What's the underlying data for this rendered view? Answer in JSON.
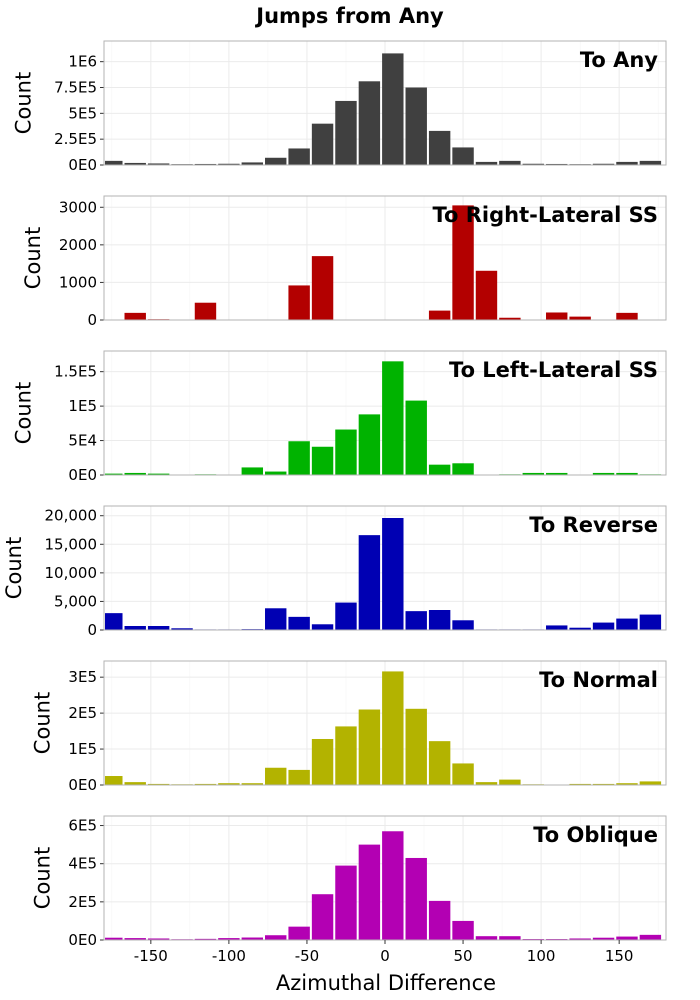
{
  "figure": {
    "title": "Jumps from Any",
    "xlabel": "Azimuthal Difference",
    "ylabel": "Count",
    "xticks": [
      "-150",
      "-100",
      "-50",
      "0",
      "50",
      "100",
      "150"
    ]
  },
  "chart_data": [
    {
      "type": "bar",
      "panel": "To Any",
      "color": "#404040",
      "x": [
        -175,
        -160,
        -145,
        -130,
        -115,
        -100,
        -85,
        -70,
        -55,
        -40,
        -25,
        -10,
        5,
        20,
        35,
        50,
        65,
        80,
        95,
        110,
        125,
        140,
        155,
        170,
        180
      ],
      "values": [
        40000,
        20000,
        15000,
        8000,
        10000,
        12000,
        25000,
        70000,
        160000,
        400000,
        620000,
        810000,
        1080000,
        750000,
        330000,
        170000,
        30000,
        40000,
        12000,
        10000,
        8000,
        12000,
        30000,
        40000,
        0
      ],
      "ylim": [
        0,
        1200000
      ],
      "yticks": [
        0,
        250000,
        500000,
        750000,
        1000000
      ],
      "ytick_labels": [
        "0E0",
        "2.5E5",
        "5E5",
        "7.5E5",
        "1E6"
      ]
    },
    {
      "type": "bar",
      "panel": "To Right-Lateral SS",
      "color": "#b30000",
      "x": [
        -175,
        -160,
        -145,
        -130,
        -115,
        -100,
        -85,
        -70,
        -55,
        -40,
        -25,
        -10,
        5,
        20,
        35,
        50,
        65,
        80,
        95,
        110,
        125,
        140,
        155,
        170,
        180
      ],
      "values": [
        0,
        190,
        20,
        0,
        460,
        0,
        0,
        0,
        920,
        1700,
        0,
        0,
        0,
        0,
        250,
        3050,
        1310,
        60,
        0,
        200,
        90,
        0,
        190,
        0,
        0
      ],
      "ylim": [
        0,
        3300
      ],
      "yticks": [
        0,
        1000,
        2000,
        3000
      ],
      "ytick_labels": [
        "0",
        "1000",
        "2000",
        "3000"
      ]
    },
    {
      "type": "bar",
      "panel": "To Left-Lateral SS",
      "color": "#00b300",
      "x": [
        -175,
        -160,
        -145,
        -130,
        -115,
        -100,
        -85,
        -70,
        -55,
        -40,
        -25,
        -10,
        5,
        20,
        35,
        50,
        65,
        80,
        95,
        110,
        125,
        140,
        155,
        170,
        180
      ],
      "values": [
        2000,
        3000,
        2000,
        0,
        1000,
        0,
        11000,
        5000,
        49000,
        41000,
        66000,
        88000,
        165000,
        108000,
        15000,
        17000,
        0,
        1000,
        3000,
        3000,
        0,
        3000,
        3000,
        1000,
        0
      ],
      "ylim": [
        0,
        180000
      ],
      "yticks": [
        0,
        50000,
        100000,
        150000
      ],
      "ytick_labels": [
        "0E0",
        "5E4",
        "1E5",
        "1.5E5"
      ]
    },
    {
      "type": "bar",
      "panel": "To Reverse",
      "color": "#0000b3",
      "x": [
        -175,
        -160,
        -145,
        -130,
        -115,
        -100,
        -85,
        -70,
        -55,
        -40,
        -25,
        -10,
        5,
        20,
        35,
        50,
        65,
        80,
        95,
        110,
        125,
        140,
        155,
        170,
        180
      ],
      "values": [
        2950,
        700,
        700,
        300,
        100,
        100,
        150,
        3800,
        2300,
        1000,
        4800,
        16600,
        19600,
        3300,
        3500,
        1700,
        100,
        100,
        100,
        800,
        400,
        1300,
        2000,
        2700,
        0
      ],
      "ylim": [
        0,
        21700
      ],
      "yticks": [
        0,
        5000,
        10000,
        15000,
        20000
      ],
      "ytick_labels": [
        "0",
        "5,000",
        "10,000",
        "15,000",
        "20,000"
      ]
    },
    {
      "type": "bar",
      "panel": "To Normal",
      "color": "#b3b300",
      "x": [
        -175,
        -160,
        -145,
        -130,
        -115,
        -100,
        -85,
        -70,
        -55,
        -40,
        -25,
        -10,
        5,
        20,
        35,
        50,
        65,
        80,
        95,
        110,
        125,
        140,
        155,
        170,
        180
      ],
      "values": [
        25000,
        8000,
        3000,
        2000,
        3000,
        5000,
        5000,
        48000,
        42000,
        128000,
        163000,
        210000,
        316000,
        212000,
        122000,
        60000,
        8000,
        15000,
        2000,
        1000,
        3000,
        3000,
        5000,
        10000,
        0
      ],
      "ylim": [
        0,
        345000
      ],
      "yticks": [
        0,
        100000,
        200000,
        300000
      ],
      "ytick_labels": [
        "0E0",
        "1E5",
        "2E5",
        "3E5"
      ]
    },
    {
      "type": "bar",
      "panel": "To Oblique",
      "color": "#b300b3",
      "x": [
        -175,
        -160,
        -145,
        -130,
        -115,
        -100,
        -85,
        -70,
        -55,
        -40,
        -25,
        -10,
        5,
        20,
        35,
        50,
        65,
        80,
        95,
        110,
        125,
        140,
        155,
        170,
        180
      ],
      "values": [
        12000,
        10000,
        8000,
        4000,
        6000,
        10000,
        13000,
        25000,
        70000,
        240000,
        390000,
        500000,
        570000,
        430000,
        205000,
        100000,
        20000,
        20000,
        5000,
        5000,
        8000,
        12000,
        18000,
        27000,
        0
      ],
      "ylim": [
        0,
        650000
      ],
      "yticks": [
        0,
        200000,
        400000,
        600000
      ],
      "ytick_labels": [
        "0E0",
        "2E5",
        "4E5",
        "6E5"
      ]
    }
  ]
}
